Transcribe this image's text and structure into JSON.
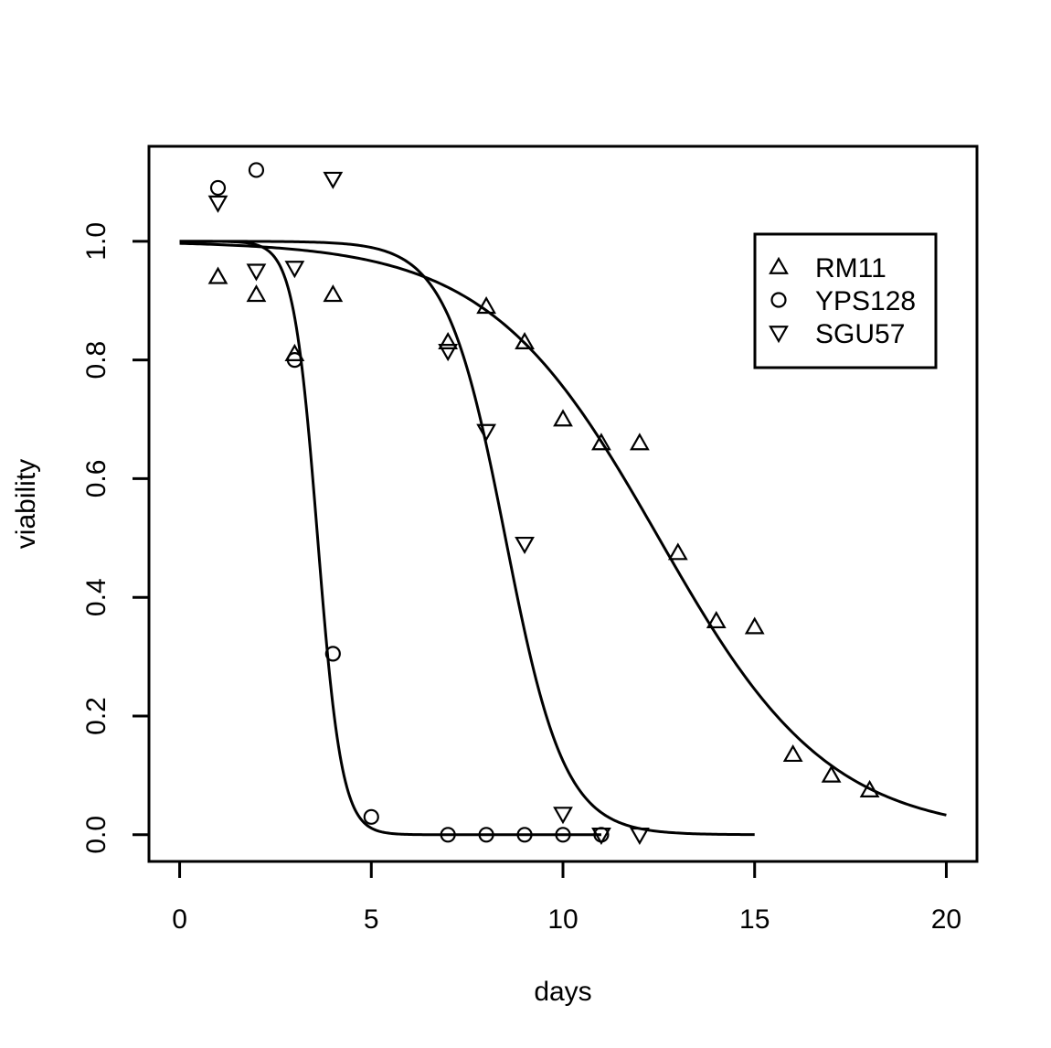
{
  "chart_data": {
    "type": "scatter",
    "xlabel": "days",
    "ylabel": "viability",
    "xlim": [
      -0.8,
      20.8
    ],
    "ylim": [
      -0.045,
      1.16
    ],
    "xticks": [
      0,
      5,
      10,
      15,
      20
    ],
    "xtick_labels": [
      "0",
      "5",
      "10",
      "15",
      "20"
    ],
    "yticks": [
      0.0,
      0.2,
      0.4,
      0.6,
      0.8,
      1.0
    ],
    "ytick_labels": [
      "0.0",
      "0.2",
      "0.4",
      "0.6",
      "0.8",
      "1.0"
    ],
    "grid": false,
    "legend_position": "top-right",
    "series": [
      {
        "name": "RM11",
        "marker": "triangle-up",
        "points": [
          [
            1,
            0.94
          ],
          [
            2,
            0.91
          ],
          [
            3,
            0.81
          ],
          [
            4,
            0.91
          ],
          [
            7,
            0.83
          ],
          [
            8,
            0.89
          ],
          [
            9,
            0.83
          ],
          [
            10,
            0.7
          ],
          [
            11,
            0.66
          ],
          [
            12,
            0.66
          ],
          [
            13,
            0.475
          ],
          [
            14,
            0.36
          ],
          [
            15,
            0.35
          ],
          [
            16,
            0.135
          ],
          [
            17,
            0.1
          ],
          [
            18,
            0.075
          ]
        ],
        "fit": {
          "model": "logistic",
          "midpoint": 12.5,
          "slope": 0.45,
          "x_range": [
            0,
            20
          ]
        }
      },
      {
        "name": "YPS128",
        "marker": "circle",
        "points": [
          [
            1,
            1.09
          ],
          [
            2,
            1.12
          ],
          [
            3,
            0.8
          ],
          [
            4,
            0.305
          ],
          [
            5,
            0.03
          ],
          [
            7,
            0.0
          ],
          [
            8,
            0.0
          ],
          [
            9,
            0.0
          ],
          [
            10,
            0.0
          ],
          [
            11,
            0.0
          ]
        ],
        "fit": {
          "model": "logistic",
          "midpoint": 3.6,
          "slope": 3.2,
          "x_range": [
            0,
            11
          ]
        }
      },
      {
        "name": "SGU57",
        "marker": "triangle-down",
        "points": [
          [
            1,
            1.065
          ],
          [
            2,
            0.95
          ],
          [
            3,
            0.955
          ],
          [
            4,
            1.105
          ],
          [
            7,
            0.815
          ],
          [
            8,
            0.68
          ],
          [
            9,
            0.49
          ],
          [
            10,
            0.035
          ],
          [
            11,
            0.0
          ],
          [
            12,
            0.0
          ]
        ],
        "fit": {
          "model": "logistic",
          "midpoint": 8.5,
          "slope": 1.3,
          "x_range": [
            0,
            15
          ]
        }
      }
    ]
  }
}
